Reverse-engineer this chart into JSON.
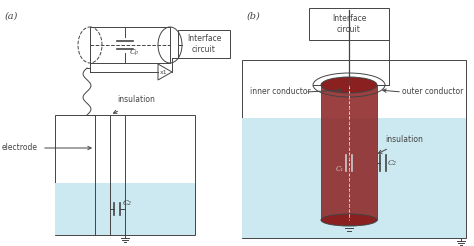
{
  "bg_color": "#ffffff",
  "light_blue": "#cce8f0",
  "dark_red": "#8b2020",
  "line_color": "#444444",
  "label_a": "(a)",
  "label_b": "(b)",
  "text_interface": "Interface\ncircuit",
  "text_electrode": "electrode",
  "text_insulation_a": "insulation",
  "text_insulation_b": "insulation",
  "text_inner": "inner conductor",
  "text_outer": "outer conductor",
  "text_C1": "C₁",
  "text_C2_a": "C₂",
  "text_C2_b": "C₂",
  "text_Cp": "Cₚ",
  "text_x1": "x1"
}
